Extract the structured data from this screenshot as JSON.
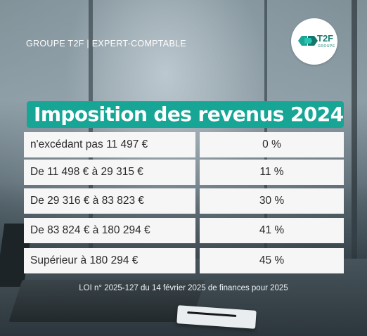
{
  "header": {
    "company": "GROUPE T2F | EXPERT-COMPTABLE",
    "logo_text": "T2F",
    "logo_subtext": "GROUPE",
    "logo_icon": "t2f-hexagon-logo",
    "accent_color": "#17a596"
  },
  "title": "Imposition des revenus 2024",
  "table": {
    "rows": [
      {
        "bracket": "n'excédant pas 11 497 €",
        "rate": "0 %"
      },
      {
        "bracket": "De 11 498 € à 29 315 €",
        "rate": "11 %"
      },
      {
        "bracket": "De 29 316 € à 83 823 €",
        "rate": "30 %"
      },
      {
        "bracket": "De 83 824 € à 180 294 €",
        "rate": "41 %"
      },
      {
        "bracket": "Supérieur à 180 294 €",
        "rate": "45 %"
      }
    ]
  },
  "footnote": "LOI n° 2025-127 du 14 février 2025 de finances pour 2025"
}
